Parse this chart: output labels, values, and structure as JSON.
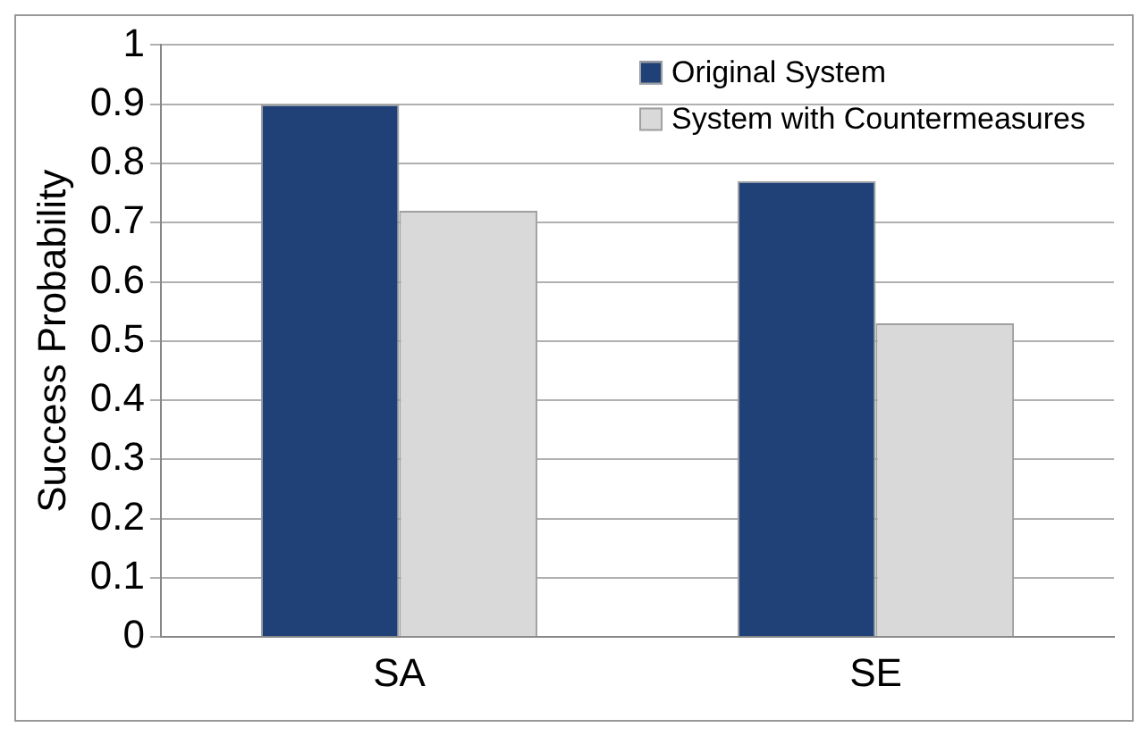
{
  "chart_data": {
    "type": "bar",
    "ylabel": "Success Probability",
    "categories": [
      "SA",
      "SE"
    ],
    "series": [
      {
        "name": "Original System",
        "color": "#1f4178",
        "values": [
          0.9,
          0.77
        ]
      },
      {
        "name": "System with Countermeasures",
        "color": "#d9d9d9",
        "values": [
          0.72,
          0.53
        ]
      }
    ],
    "ylim": [
      0,
      1
    ],
    "yticks": [
      0,
      0.1,
      0.2,
      0.3,
      0.4,
      0.5,
      0.6,
      0.7,
      0.8,
      0.9,
      1
    ],
    "grid": "y",
    "legend": "top right"
  }
}
